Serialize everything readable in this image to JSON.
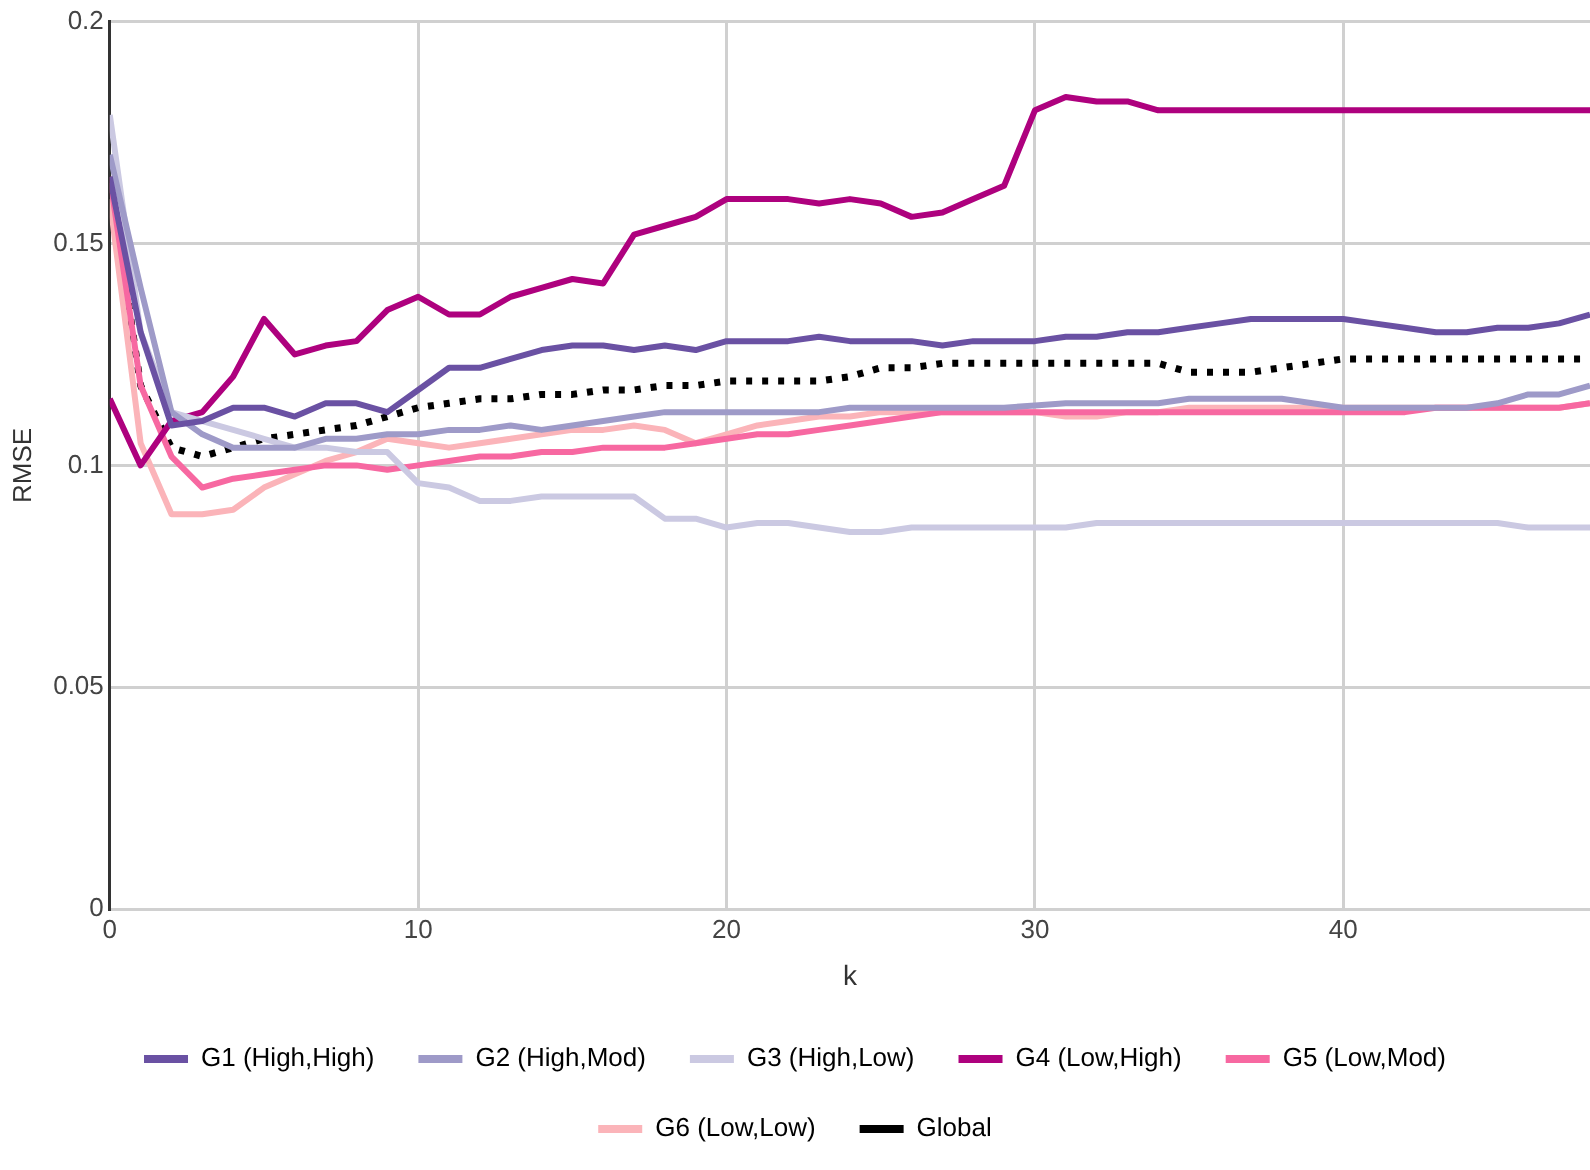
{
  "chart_data": {
    "type": "line",
    "xlabel": "k",
    "ylabel": "RMSE",
    "x": [
      0,
      1,
      2,
      3,
      4,
      5,
      6,
      7,
      8,
      9,
      10,
      11,
      12,
      13,
      14,
      15,
      16,
      17,
      18,
      19,
      20,
      21,
      22,
      23,
      24,
      25,
      26,
      27,
      28,
      29,
      30,
      31,
      32,
      33,
      34,
      35,
      36,
      37,
      38,
      39,
      40,
      41,
      42,
      43,
      44,
      45,
      46,
      47,
      48
    ],
    "xlim": [
      0,
      48
    ],
    "xticks": [
      0,
      10,
      20,
      30,
      40
    ],
    "ylim": [
      0,
      0.2
    ],
    "yticks": [
      0,
      0.05,
      0.1,
      0.15,
      0.2
    ],
    "grid": true,
    "legend": "bottom",
    "marker": "none",
    "series": [
      {
        "name": "G1 (High,High)",
        "color": "#6a51a3",
        "values": [
          0.165,
          0.13,
          0.109,
          0.11,
          0.113,
          0.113,
          0.111,
          0.114,
          0.114,
          0.112,
          0.117,
          0.122,
          0.122,
          0.124,
          0.126,
          0.127,
          0.127,
          0.126,
          0.127,
          0.126,
          0.128,
          0.128,
          0.128,
          0.129,
          0.128,
          0.128,
          0.128,
          0.127,
          0.128,
          0.128,
          0.128,
          0.129,
          0.129,
          0.13,
          0.13,
          0.131,
          0.132,
          0.133,
          0.133,
          0.133,
          0.133,
          0.132,
          0.131,
          0.13,
          0.13,
          0.131,
          0.131,
          0.132,
          0.134
        ]
      },
      {
        "name": "G2 (High,Mod)",
        "color": "#9e9ac8",
        "values": [
          0.17,
          0.14,
          0.112,
          0.107,
          0.104,
          0.104,
          0.104,
          0.106,
          0.106,
          0.107,
          0.107,
          0.108,
          0.108,
          0.109,
          0.108,
          0.109,
          0.11,
          0.111,
          0.112,
          0.112,
          0.112,
          0.112,
          0.112,
          0.112,
          0.113,
          0.113,
          0.113,
          0.113,
          0.113,
          0.113,
          0.1135,
          0.114,
          0.114,
          0.114,
          0.114,
          0.115,
          0.115,
          0.115,
          0.115,
          0.114,
          0.113,
          0.113,
          0.113,
          0.113,
          0.113,
          0.114,
          0.116,
          0.116,
          0.118
        ]
      },
      {
        "name": "G3 (High,Low)",
        "color": "#cbc9e2",
        "values": [
          0.179,
          0.13,
          0.112,
          0.11,
          0.108,
          0.106,
          0.104,
          0.104,
          0.103,
          0.103,
          0.096,
          0.095,
          0.092,
          0.092,
          0.093,
          0.093,
          0.093,
          0.093,
          0.088,
          0.088,
          0.086,
          0.087,
          0.087,
          0.086,
          0.085,
          0.085,
          0.086,
          0.086,
          0.086,
          0.086,
          0.086,
          0.086,
          0.087,
          0.087,
          0.087,
          0.087,
          0.087,
          0.087,
          0.087,
          0.087,
          0.087,
          0.087,
          0.087,
          0.087,
          0.087,
          0.087,
          0.086,
          0.086,
          0.086
        ]
      },
      {
        "name": "G4 (Low,High)",
        "color": "#ae017e",
        "values": [
          0.115,
          0.1,
          0.11,
          0.112,
          0.12,
          0.133,
          0.125,
          0.127,
          0.128,
          0.135,
          0.138,
          0.134,
          0.134,
          0.138,
          0.14,
          0.142,
          0.141,
          0.152,
          0.154,
          0.156,
          0.16,
          0.16,
          0.16,
          0.159,
          0.16,
          0.159,
          0.156,
          0.157,
          0.16,
          0.163,
          0.18,
          0.183,
          0.182,
          0.182,
          0.18,
          0.18,
          0.18,
          0.18,
          0.18,
          0.18,
          0.18,
          0.18,
          0.18,
          0.18,
          0.18,
          0.18,
          0.18,
          0.18,
          0.18
        ]
      },
      {
        "name": "G5 (Low,Mod)",
        "color": "#f768a1",
        "values": [
          0.165,
          0.118,
          0.102,
          0.095,
          0.097,
          0.098,
          0.099,
          0.1,
          0.1,
          0.099,
          0.1,
          0.101,
          0.102,
          0.102,
          0.103,
          0.103,
          0.104,
          0.104,
          0.104,
          0.105,
          0.106,
          0.107,
          0.107,
          0.108,
          0.109,
          0.11,
          0.111,
          0.112,
          0.112,
          0.112,
          0.112,
          0.112,
          0.112,
          0.112,
          0.112,
          0.112,
          0.112,
          0.112,
          0.112,
          0.112,
          0.112,
          0.112,
          0.112,
          0.113,
          0.113,
          0.113,
          0.113,
          0.113,
          0.114
        ]
      },
      {
        "name": "G6 (Low,Low)",
        "color": "#fbb4b9",
        "values": [
          0.16,
          0.105,
          0.089,
          0.089,
          0.09,
          0.095,
          0.098,
          0.101,
          0.103,
          0.106,
          0.105,
          0.104,
          0.105,
          0.106,
          0.107,
          0.108,
          0.108,
          0.109,
          0.108,
          0.105,
          0.107,
          0.109,
          0.11,
          0.111,
          0.111,
          0.112,
          0.112,
          0.112,
          0.112,
          0.112,
          0.112,
          0.111,
          0.111,
          0.112,
          0.112,
          0.113,
          0.113,
          0.113,
          0.113,
          0.113,
          0.113,
          0.113,
          0.113,
          0.113,
          0.113,
          0.113,
          0.113,
          0.113,
          0.114
        ]
      },
      {
        "name": "Global",
        "color": "#000000",
        "line_style": "dotted",
        "values": [
          0.165,
          0.118,
          0.104,
          0.102,
          0.104,
          0.106,
          0.107,
          0.108,
          0.109,
          0.111,
          0.113,
          0.114,
          0.115,
          0.115,
          0.116,
          0.116,
          0.117,
          0.117,
          0.118,
          0.118,
          0.119,
          0.119,
          0.119,
          0.119,
          0.12,
          0.122,
          0.122,
          0.123,
          0.123,
          0.123,
          0.123,
          0.123,
          0.123,
          0.123,
          0.123,
          0.121,
          0.121,
          0.121,
          0.122,
          0.123,
          0.124,
          0.124,
          0.124,
          0.124,
          0.124,
          0.124,
          0.124,
          0.124,
          0.124
        ]
      }
    ]
  }
}
